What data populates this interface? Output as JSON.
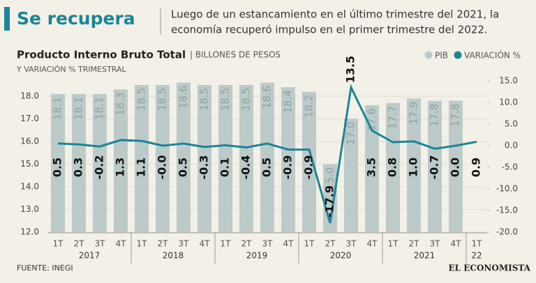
{
  "chart_data": {
    "type": "bar_line",
    "header_title": "Se recupera",
    "header_text": [
      "Luego de un estancamiento en el último trimestre del 2021, la",
      "economía recuperó impulso en el primer trimestre del 2022."
    ],
    "title": "Producto Interno Bruto Total",
    "subtitle_units": "| BILLONES DE PESOS",
    "subtitle": "Y VARIACIÓN % TRIMESTRAL",
    "source": "FUENTE: INEGI",
    "brand": "EL ECONOMISTA",
    "categories": [
      "1T",
      "2T",
      "3T",
      "4T",
      "1T",
      "2T",
      "3T",
      "4T",
      "1T",
      "2T",
      "3T",
      "4T",
      "1T",
      "2T",
      "3T",
      "4T",
      "1T",
      "2T",
      "3T",
      "4T",
      "1T"
    ],
    "category_years": [
      "2017",
      null,
      null,
      null,
      "2018",
      null,
      null,
      null,
      "2019",
      null,
      null,
      null,
      "2020",
      null,
      null,
      null,
      "2021",
      null,
      null,
      null,
      "22"
    ],
    "series": [
      {
        "name": "PIB",
        "color": "#bccbca",
        "type": "bar",
        "values": [
          18.1,
          18.1,
          18.1,
          18.3,
          18.5,
          18.5,
          18.6,
          18.5,
          18.5,
          18.5,
          18.6,
          18.4,
          18.2,
          15.0,
          17.0,
          17.6,
          17.7,
          17.9,
          17.8,
          17.8,
          null
        ],
        "value_labels": [
          "18.1",
          "18.1",
          "18.1",
          "18.3",
          "18.5",
          "18.5",
          "18.6",
          "18.5",
          "18.5",
          "18.5",
          "18.6",
          "18.4",
          "18.2",
          "15.0",
          "17.0",
          "17.6",
          "17.7",
          "17.9",
          "17.8",
          "17.8",
          null
        ]
      },
      {
        "name": "VARIACIÓN %",
        "color": "#1b8597",
        "type": "line",
        "axis": "y2",
        "values": [
          0.5,
          0.3,
          -0.2,
          1.3,
          1.1,
          -0.0,
          0.5,
          -0.3,
          0.1,
          -0.4,
          0.5,
          -0.9,
          -0.9,
          -17.9,
          13.5,
          3.5,
          0.8,
          1.0,
          -0.7,
          0.0,
          0.9
        ],
        "value_labels": [
          "0.5",
          "0.3",
          "-0.2",
          "1.3",
          "1.1",
          "-0.0",
          "0.5",
          "-0.3",
          "0.1",
          "-0.4",
          "0.5",
          "-0.9",
          "-0.9",
          "-17.9",
          "13.5",
          "3.5",
          "0.8",
          "1.0",
          "-0.7",
          "0.0",
          "0.9"
        ]
      }
    ],
    "ylim": [
      12,
      18.68
    ],
    "yticks": [
      {
        "value": 12,
        "label": "12.0"
      },
      {
        "value": 13,
        "label": "13.0"
      },
      {
        "value": 14,
        "label": "14.0"
      },
      {
        "value": 15,
        "label": "15.0"
      },
      {
        "value": 16,
        "label": "16.0"
      },
      {
        "value": 17,
        "label": "17.0"
      },
      {
        "value": 18,
        "label": "18.0"
      }
    ],
    "y2lim": [
      -20,
      15
    ],
    "y2ticks": [
      {
        "value": 15,
        "label": "15.0"
      },
      {
        "value": 10,
        "label": "10.0"
      },
      {
        "value": 5,
        "label": "5.0"
      },
      {
        "value": 0,
        "label": "0.0"
      },
      {
        "value": -5,
        "label": "-5.0"
      },
      {
        "value": -10,
        "label": "-10.0"
      },
      {
        "value": -15,
        "label": "-15.0"
      },
      {
        "value": -20,
        "label": "-20.0"
      }
    ],
    "grid": true
  }
}
